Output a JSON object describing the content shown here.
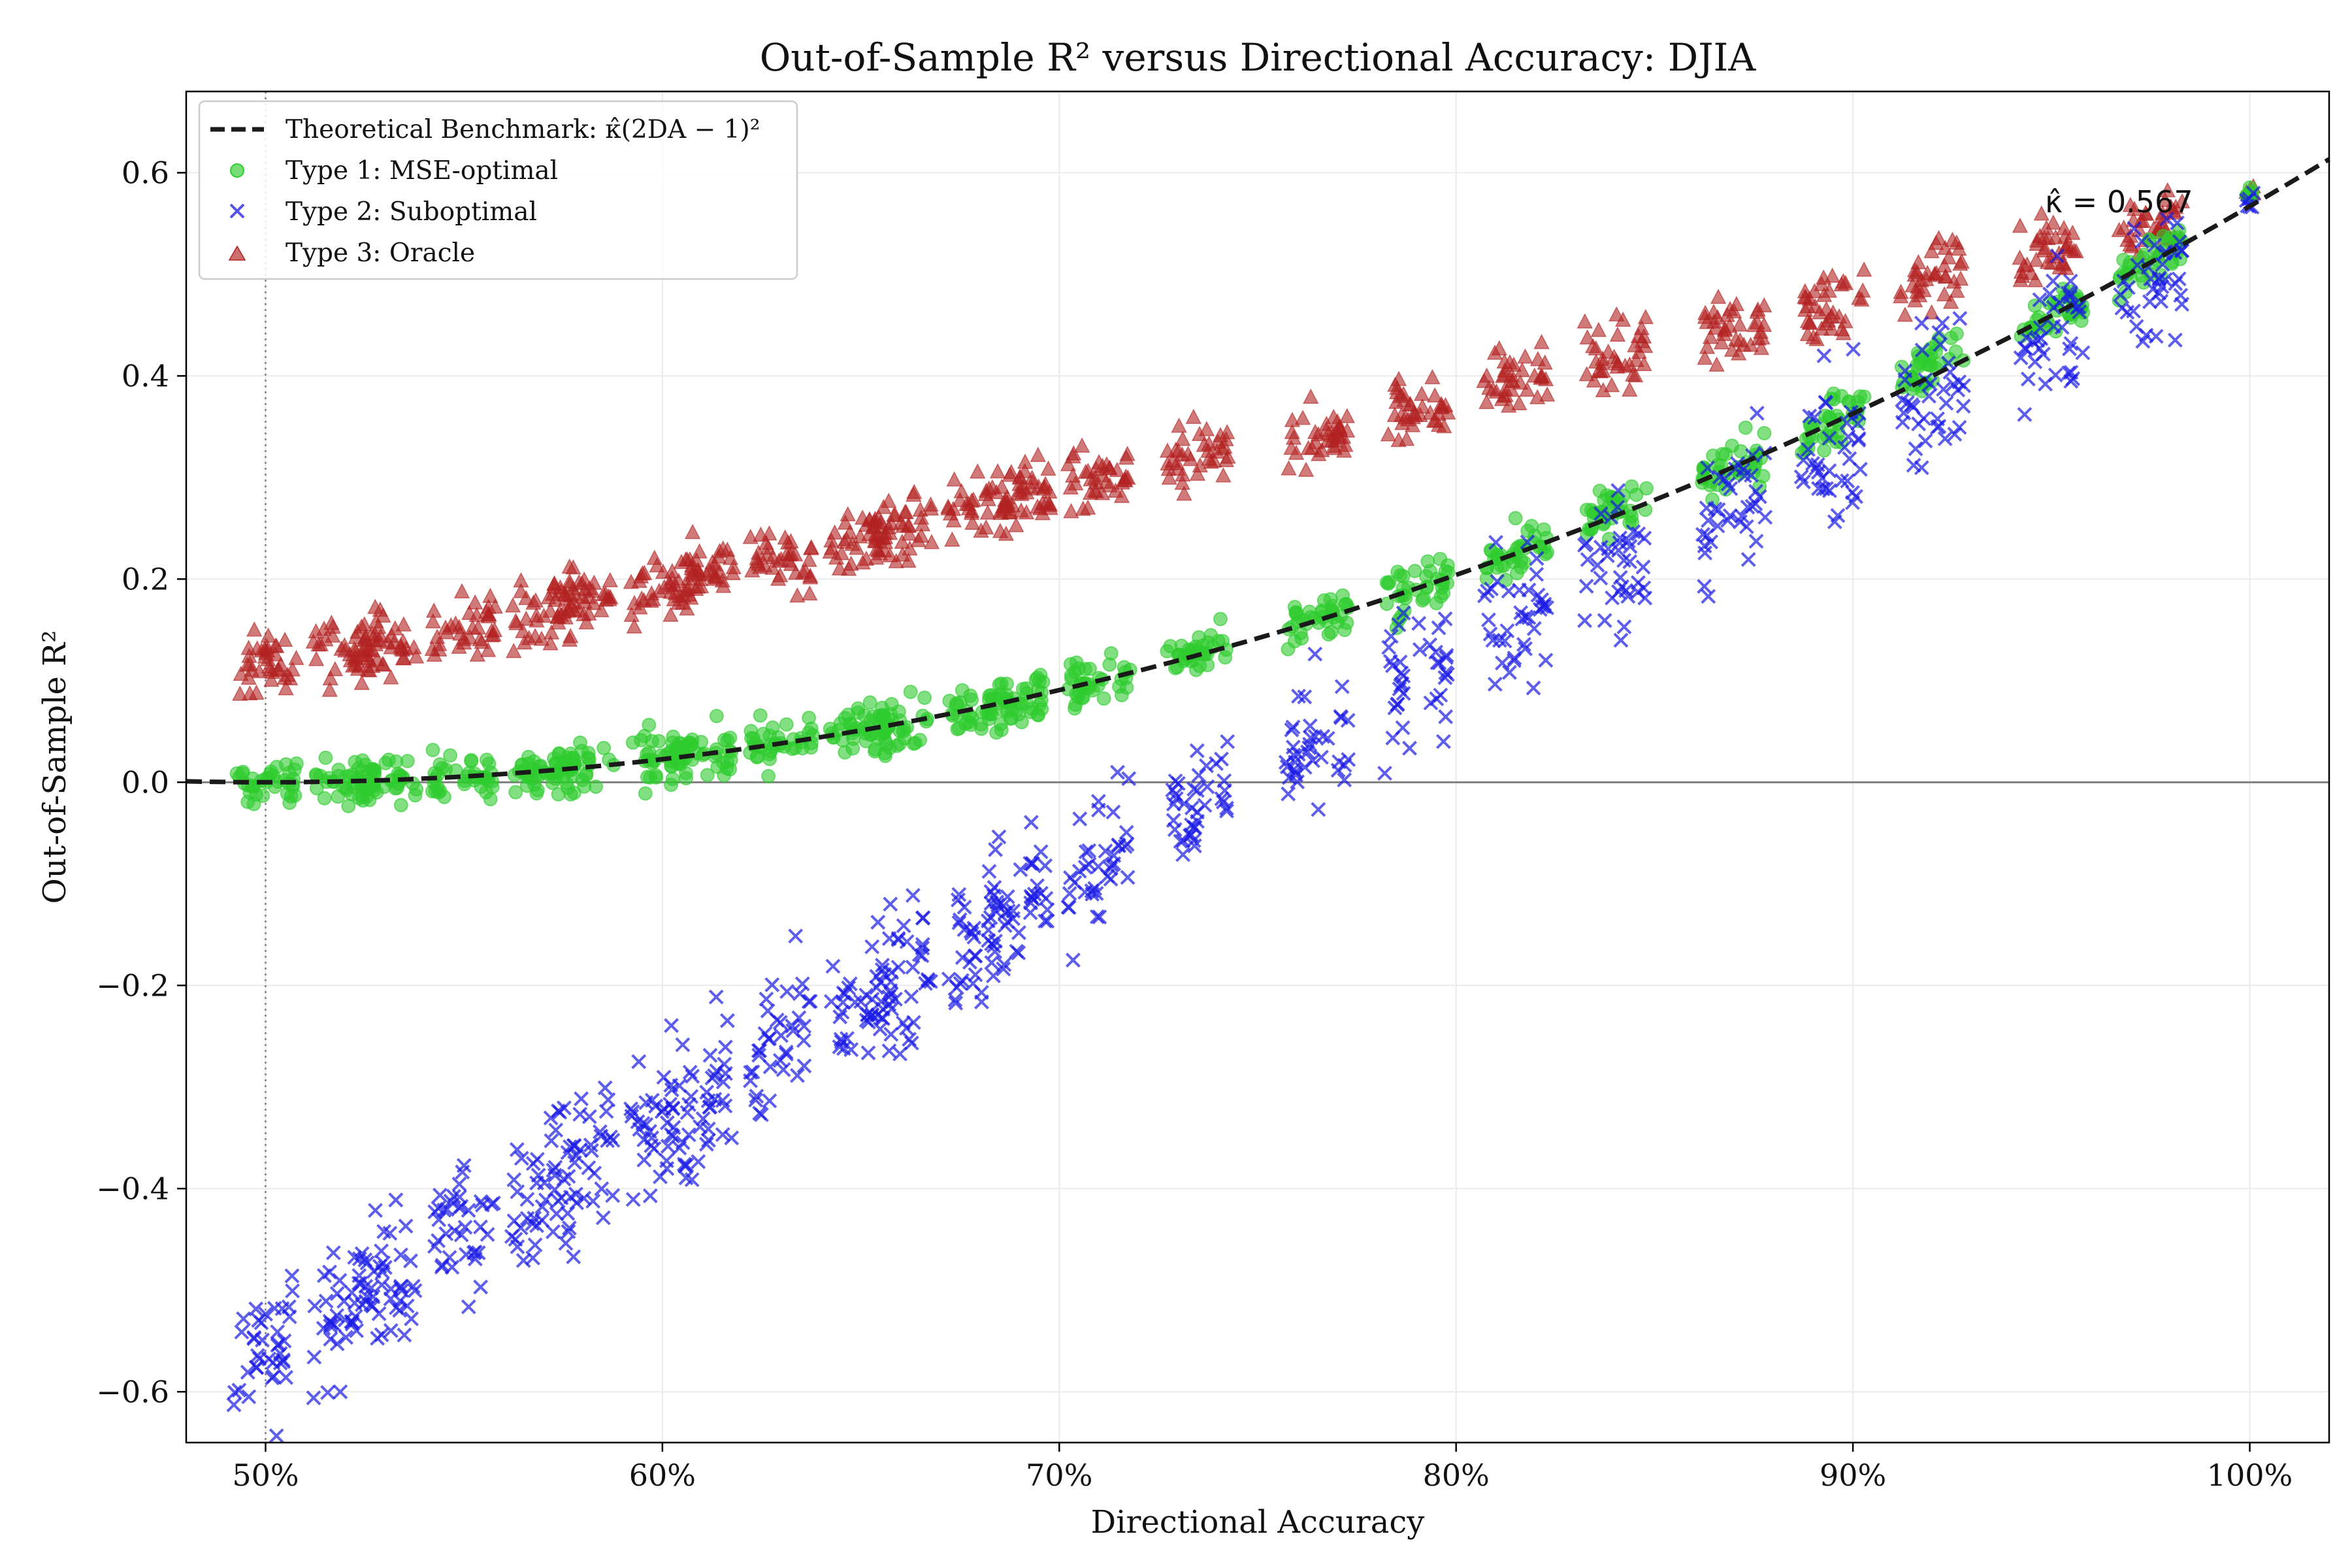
{
  "chart_data": {
    "type": "scatter",
    "title": "Out-of-Sample R² versus Directional Accuracy: DJIA",
    "xlabel": "Directional Accuracy",
    "ylabel": "Out-of-Sample R²",
    "xlim": [
      0.48,
      1.02
    ],
    "ylim": [
      -0.65,
      0.68
    ],
    "xticks": [
      0.5,
      0.6,
      0.7,
      0.8,
      0.9,
      1.0
    ],
    "xtick_labels": [
      "50%",
      "60%",
      "70%",
      "80%",
      "90%",
      "100%"
    ],
    "yticks": [
      -0.6,
      -0.4,
      -0.2,
      0.0,
      0.2,
      0.4,
      0.6
    ],
    "ytick_labels": [
      "−0.6",
      "−0.4",
      "−0.2",
      "0.0",
      "0.2",
      "0.4",
      "0.6"
    ],
    "grid": true,
    "legend_position": "top-left",
    "reference_lines": {
      "horizontal_y": 0.0,
      "vertical_x": 0.5
    },
    "kappa_hat": 0.567,
    "annotation": "κ̂ = 0.567",
    "benchmark": {
      "name": "Theoretical Benchmark: κ̂(2DA − 1)²",
      "formula": "kappa*(2*DA-1)^2",
      "x_range": [
        0.48,
        1.02
      ],
      "color": "#1a1a1a"
    },
    "series": [
      {
        "name": "Type 1: MSE-optimal",
        "marker": "circle",
        "color": "#2ecc2e",
        "clusters": [
          {
            "x": 0.5,
            "y": 0.0
          },
          {
            "x": 0.52,
            "y": 0.001
          },
          {
            "x": 0.53,
            "y": 0.002
          },
          {
            "x": 0.55,
            "y": 0.006
          },
          {
            "x": 0.57,
            "y": 0.011
          },
          {
            "x": 0.58,
            "y": 0.014
          },
          {
            "x": 0.6,
            "y": 0.023
          },
          {
            "x": 0.61,
            "y": 0.03
          },
          {
            "x": 0.63,
            "y": 0.038
          },
          {
            "x": 0.65,
            "y": 0.052
          },
          {
            "x": 0.66,
            "y": 0.058
          },
          {
            "x": 0.68,
            "y": 0.074
          },
          {
            "x": 0.69,
            "y": 0.082
          },
          {
            "x": 0.71,
            "y": 0.1
          },
          {
            "x": 0.735,
            "y": 0.125
          },
          {
            "x": 0.765,
            "y": 0.158
          },
          {
            "x": 0.79,
            "y": 0.19
          },
          {
            "x": 0.815,
            "y": 0.226
          },
          {
            "x": 0.84,
            "y": 0.266
          },
          {
            "x": 0.87,
            "y": 0.31
          },
          {
            "x": 0.895,
            "y": 0.358
          },
          {
            "x": 0.92,
            "y": 0.41
          },
          {
            "x": 0.95,
            "y": 0.46
          },
          {
            "x": 0.975,
            "y": 0.515
          },
          {
            "x": 1.0,
            "y": 0.58
          }
        ]
      },
      {
        "name": "Type 2: Suboptimal",
        "marker": "x",
        "color": "#1a1ae6",
        "clusters": [
          {
            "x": 0.5,
            "y": -0.56
          },
          {
            "x": 0.52,
            "y": -0.52
          },
          {
            "x": 0.53,
            "y": -0.49
          },
          {
            "x": 0.55,
            "y": -0.44
          },
          {
            "x": 0.57,
            "y": -0.4
          },
          {
            "x": 0.58,
            "y": -0.37
          },
          {
            "x": 0.6,
            "y": -0.34
          },
          {
            "x": 0.61,
            "y": -0.31
          },
          {
            "x": 0.63,
            "y": -0.26
          },
          {
            "x": 0.65,
            "y": -0.22
          },
          {
            "x": 0.66,
            "y": -0.19
          },
          {
            "x": 0.68,
            "y": -0.15
          },
          {
            "x": 0.69,
            "y": -0.12
          },
          {
            "x": 0.71,
            "y": -0.08
          },
          {
            "x": 0.735,
            "y": -0.02
          },
          {
            "x": 0.765,
            "y": 0.04
          },
          {
            "x": 0.79,
            "y": 0.1
          },
          {
            "x": 0.815,
            "y": 0.16
          },
          {
            "x": 0.84,
            "y": 0.21
          },
          {
            "x": 0.87,
            "y": 0.27
          },
          {
            "x": 0.895,
            "y": 0.32
          },
          {
            "x": 0.92,
            "y": 0.38
          },
          {
            "x": 0.95,
            "y": 0.44
          },
          {
            "x": 0.975,
            "y": 0.5
          },
          {
            "x": 1.0,
            "y": 0.575
          }
        ]
      },
      {
        "name": "Type 3: Oracle",
        "marker": "triangle",
        "color": "#b22222",
        "clusters": [
          {
            "x": 0.5,
            "y": 0.115
          },
          {
            "x": 0.52,
            "y": 0.13
          },
          {
            "x": 0.53,
            "y": 0.135
          },
          {
            "x": 0.55,
            "y": 0.15
          },
          {
            "x": 0.57,
            "y": 0.17
          },
          {
            "x": 0.58,
            "y": 0.18
          },
          {
            "x": 0.6,
            "y": 0.195
          },
          {
            "x": 0.61,
            "y": 0.205
          },
          {
            "x": 0.63,
            "y": 0.22
          },
          {
            "x": 0.65,
            "y": 0.24
          },
          {
            "x": 0.66,
            "y": 0.25
          },
          {
            "x": 0.68,
            "y": 0.27
          },
          {
            "x": 0.69,
            "y": 0.28
          },
          {
            "x": 0.71,
            "y": 0.295
          },
          {
            "x": 0.735,
            "y": 0.32
          },
          {
            "x": 0.765,
            "y": 0.34
          },
          {
            "x": 0.79,
            "y": 0.37
          },
          {
            "x": 0.815,
            "y": 0.395
          },
          {
            "x": 0.84,
            "y": 0.42
          },
          {
            "x": 0.87,
            "y": 0.445
          },
          {
            "x": 0.895,
            "y": 0.47
          },
          {
            "x": 0.92,
            "y": 0.5
          },
          {
            "x": 0.95,
            "y": 0.525
          },
          {
            "x": 0.975,
            "y": 0.55
          },
          {
            "x": 1.0,
            "y": 0.58
          }
        ]
      }
    ]
  }
}
